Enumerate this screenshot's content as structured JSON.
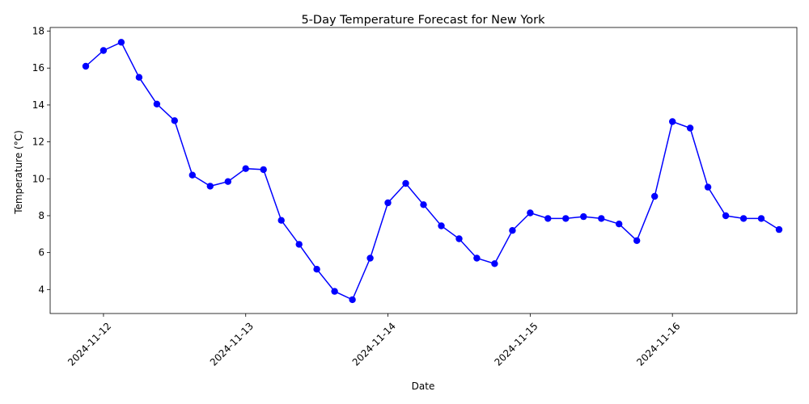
{
  "chart_data": {
    "type": "line",
    "title": "5-Day Temperature Forecast for  New York",
    "xlabel": "Date",
    "ylabel": "Temperature (°C)",
    "x_ticks": [
      "2024-11-12",
      "2024-11-13",
      "2024-11-14",
      "2024-11-15",
      "2024-11-16"
    ],
    "y_ticks": [
      4,
      6,
      8,
      10,
      12,
      14,
      16,
      18
    ],
    "ylim": [
      2.7,
      18.2
    ],
    "xlim": [
      "2024-11-11 15:00",
      "2024-11-16 21:00"
    ],
    "grid": false,
    "legend": "none",
    "color": "#0000ff",
    "marker": "circle",
    "x": [
      "2024-11-11 21:00",
      "2024-11-12 00:00",
      "2024-11-12 03:00",
      "2024-11-12 06:00",
      "2024-11-12 09:00",
      "2024-11-12 12:00",
      "2024-11-12 15:00",
      "2024-11-12 18:00",
      "2024-11-12 21:00",
      "2024-11-13 00:00",
      "2024-11-13 03:00",
      "2024-11-13 06:00",
      "2024-11-13 09:00",
      "2024-11-13 12:00",
      "2024-11-13 15:00",
      "2024-11-13 18:00",
      "2024-11-13 21:00",
      "2024-11-14 00:00",
      "2024-11-14 03:00",
      "2024-11-14 06:00",
      "2024-11-14 09:00",
      "2024-11-14 12:00",
      "2024-11-14 15:00",
      "2024-11-14 18:00",
      "2024-11-14 21:00",
      "2024-11-15 00:00",
      "2024-11-15 03:00",
      "2024-11-15 06:00",
      "2024-11-15 09:00",
      "2024-11-15 12:00",
      "2024-11-15 15:00",
      "2024-11-15 18:00",
      "2024-11-15 21:00",
      "2024-11-16 00:00",
      "2024-11-16 03:00",
      "2024-11-16 06:00",
      "2024-11-16 09:00",
      "2024-11-16 12:00",
      "2024-11-16 15:00",
      "2024-11-16 18:00"
    ],
    "y": [
      16.1,
      16.95,
      17.4,
      15.5,
      14.05,
      13.15,
      10.2,
      9.6,
      9.85,
      10.55,
      10.5,
      7.75,
      6.45,
      5.1,
      3.9,
      3.45,
      5.7,
      8.7,
      9.75,
      8.6,
      7.45,
      6.75,
      5.7,
      5.4,
      7.2,
      8.15,
      7.85,
      7.85,
      7.95,
      7.85,
      7.55,
      6.65,
      9.05,
      13.1,
      12.75,
      9.55,
      8.0,
      7.85,
      7.85,
      7.25
    ]
  }
}
